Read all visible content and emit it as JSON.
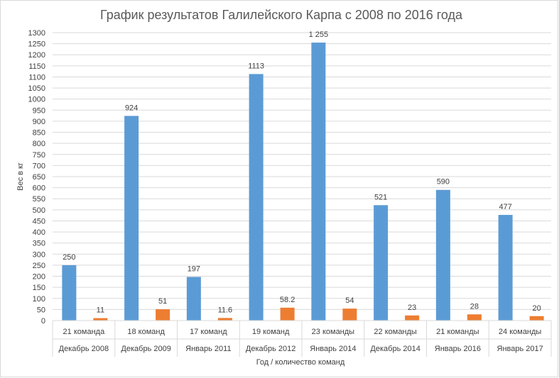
{
  "chart_data": {
    "type": "bar",
    "title": "График результатов Галилейского Карпа с 2008 по 2016 года",
    "xlabel": "Год / количество команд",
    "ylabel": "Вес в кг",
    "ylim": [
      0,
      1300
    ],
    "ytick_step": 50,
    "grid": true,
    "legend": "none",
    "categories": [
      {
        "teams": "21 команда",
        "date": "Декабрь 2008"
      },
      {
        "teams": "18 команд",
        "date": "Декабрь 2009"
      },
      {
        "teams": "17 команд",
        "date": "Январь 2011"
      },
      {
        "teams": "19 команд",
        "date": "Декабрь 2012"
      },
      {
        "teams": "23 команды",
        "date": "Январь 2014"
      },
      {
        "teams": "22 команды",
        "date": "Декабрь 2014"
      },
      {
        "teams": "21 команды",
        "date": "Январь 2016"
      },
      {
        "teams": "24 команды",
        "date": "Январь 2017"
      }
    ],
    "series": [
      {
        "color": "#5b9bd5",
        "values": [
          250,
          924,
          197,
          1113,
          1255,
          521,
          590,
          477
        ],
        "labels": [
          "250",
          "924",
          "197",
          "1113",
          "1 255",
          "521",
          "590",
          "477"
        ]
      },
      {
        "color": "#ed7d31",
        "values": [
          11,
          51,
          11.6,
          58.2,
          54,
          23,
          28,
          20
        ],
        "labels": [
          "11",
          "51",
          "11.6",
          "58.2",
          "54",
          "23",
          "28",
          "20"
        ]
      }
    ]
  }
}
